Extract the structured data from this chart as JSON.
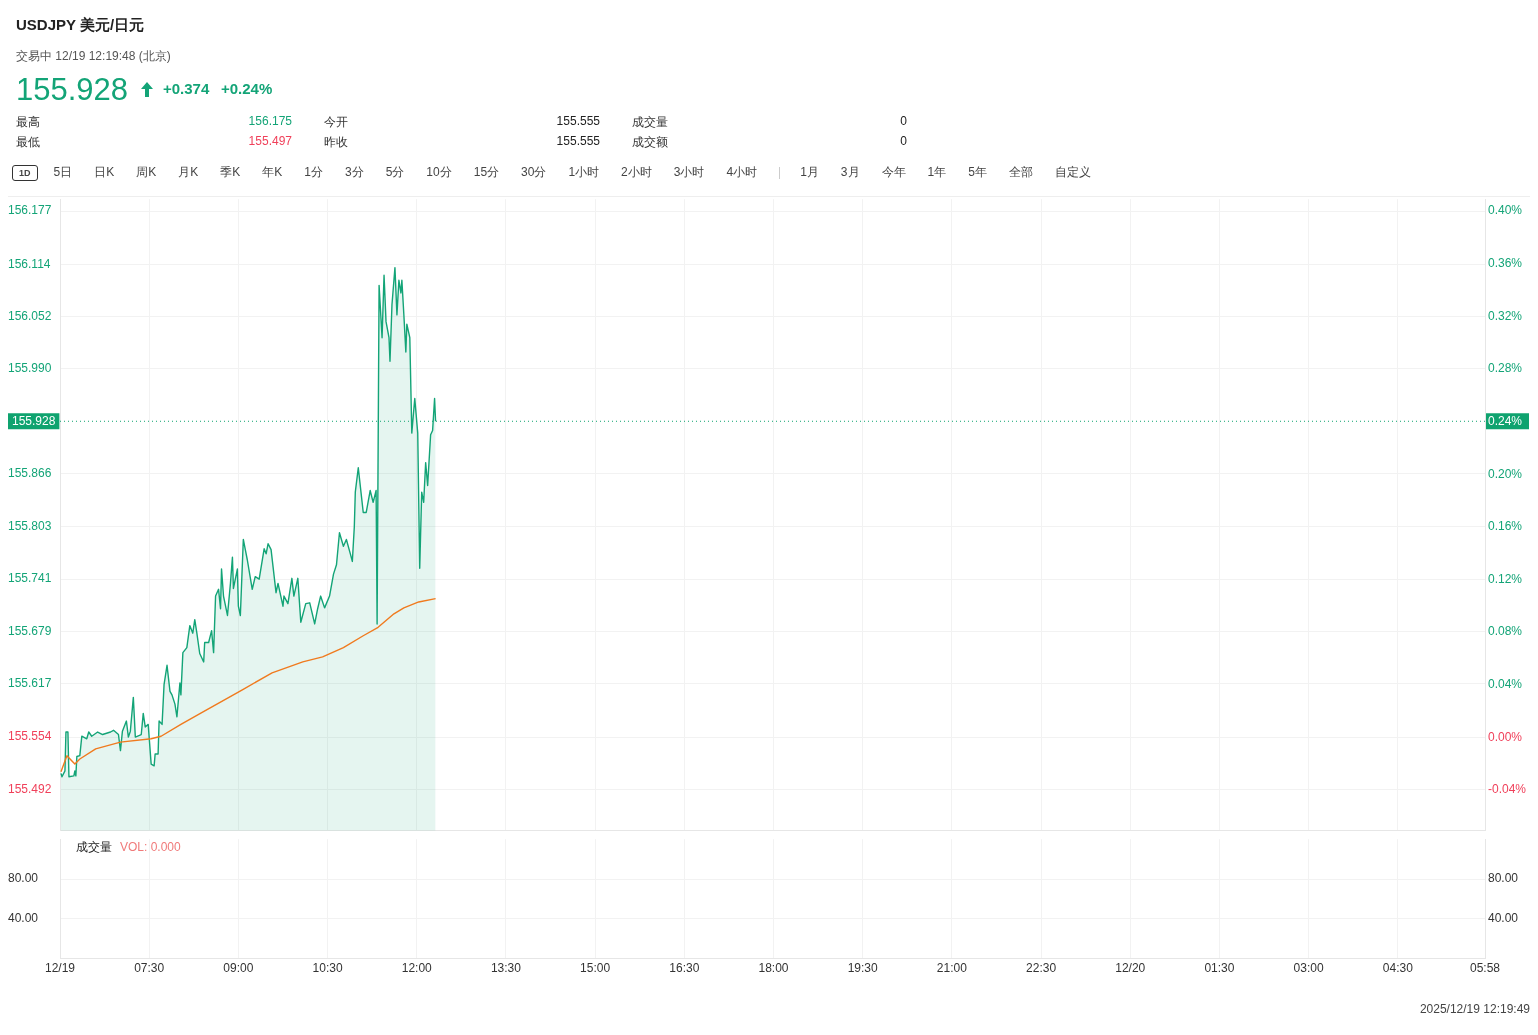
{
  "chart_data": [
    {
      "type": "line",
      "title": "USDJPY  美元/日元",
      "subtitle": "交易中 12/19 12:19:48 (北京)",
      "annotations": [
        "155.928",
        "+0.374",
        "+0.24%",
        "最高",
        "156.175",
        "今开",
        "155.555",
        "成交量",
        "0",
        "最低",
        "155.497",
        "昨收",
        "155.555",
        "成交额",
        "0",
        "1D",
        "5日",
        "日K",
        "周K",
        "月K",
        "季K",
        "年K",
        "1分",
        "3分",
        "5分",
        "10分",
        "15分",
        "30分",
        "1小时",
        "2小时",
        "3小时",
        "4小时",
        "1月",
        "3月",
        "今年",
        "1年",
        "5年",
        "全部",
        "自定义",
        "2025/12/19 12:19:49"
      ],
      "series": [
        {
          "type": "area",
          "color": "#13a477",
          "x": [
            "2025-12-19T06:01",
            "2025-12-19T06:02",
            "2025-12-19T06:05",
            "2025-12-19T06:06",
            "2025-12-19T06:08",
            "2025-12-19T06:09",
            "2025-12-19T06:14",
            "2025-12-19T06:15",
            "2025-12-19T06:16",
            "2025-12-19T06:17",
            "2025-12-19T06:20",
            "2025-12-19T06:22",
            "2025-12-19T06:27",
            "2025-12-19T06:29",
            "2025-12-19T06:32",
            "2025-12-19T06:38",
            "2025-12-19T06:43",
            "2025-12-19T06:51",
            "2025-12-19T06:54",
            "2025-12-19T06:59",
            "2025-12-19T07:01",
            "2025-12-19T07:03",
            "2025-12-19T07:07",
            "2025-12-19T07:09",
            "2025-12-19T07:11",
            "2025-12-19T07:14",
            "2025-12-19T07:16",
            "2025-12-19T07:22",
            "2025-12-19T07:24",
            "2025-12-19T07:26",
            "2025-12-19T07:29",
            "2025-12-19T07:32",
            "2025-12-19T07:35",
            "2025-12-19T07:36",
            "2025-12-19T07:39",
            "2025-12-19T07:40",
            "2025-12-19T07:43",
            "2025-12-19T07:45",
            "2025-12-19T07:48",
            "2025-12-19T07:51",
            "2025-12-19T07:53",
            "2025-12-19T07:56",
            "2025-12-19T07:58",
            "2025-12-19T08:01",
            "2025-12-19T08:02",
            "2025-12-19T08:04",
            "2025-12-19T08:08",
            "2025-12-19T08:11",
            "2025-12-19T08:14",
            "2025-12-19T08:16",
            "2025-12-19T08:18",
            "2025-12-19T08:21",
            "2025-12-19T08:25",
            "2025-12-19T08:26",
            "2025-12-19T08:30",
            "2025-12-19T08:33",
            "2025-12-19T08:35",
            "2025-12-19T08:37",
            "2025-12-19T08:40",
            "2025-12-19T08:42",
            "2025-12-19T08:43",
            "2025-12-19T08:45",
            "2025-12-19T08:49",
            "2025-12-19T08:52",
            "2025-12-19T08:54",
            "2025-12-19T08:55",
            "2025-12-19T08:59",
            "2025-12-19T09:00",
            "2025-12-19T09:02",
            "2025-12-19T09:05",
            "2025-12-19T09:07",
            "2025-12-19T09:09",
            "2025-12-19T09:14",
            "2025-12-19T09:17",
            "2025-12-19T09:21",
            "2025-12-19T09:26",
            "2025-12-19T09:28",
            "2025-12-19T09:30",
            "2025-12-19T09:33",
            "2025-12-19T09:38",
            "2025-12-19T09:40",
            "2025-12-19T09:45",
            "2025-12-19T09:46",
            "2025-12-19T09:50",
            "2025-12-19T09:54",
            "2025-12-19T09:56",
            "2025-12-19T10:00",
            "2025-12-19T10:03",
            "2025-12-19T10:08",
            "2025-12-19T10:12",
            "2025-12-19T10:17",
            "2025-12-19T10:20",
            "2025-12-19T10:23",
            "2025-12-19T10:27",
            "2025-12-19T10:32",
            "2025-12-19T10:36",
            "2025-12-19T10:39",
            "2025-12-19T10:42",
            "2025-12-19T10:46",
            "2025-12-19T10:49",
            "2025-12-19T10:53",
            "2025-12-19T10:55",
            "2025-12-19T10:57",
            "2025-12-19T10:58",
            "2025-12-19T11:01",
            "2025-12-19T11:06",
            "2025-12-19T11:09",
            "2025-12-19T11:13",
            "2025-12-19T11:16",
            "2025-12-19T11:19",
            "2025-12-19T11:20",
            "2025-12-19T11:22",
            "2025-12-19T11:25",
            "2025-12-19T11:27",
            "2025-12-19T11:29",
            "2025-12-19T11:32",
            "2025-12-19T11:33",
            "2025-12-19T11:35",
            "2025-12-19T11:38",
            "2025-12-19T11:40",
            "2025-12-19T11:42",
            "2025-12-19T11:44",
            "2025-12-19T11:45",
            "2025-12-19T11:47",
            "2025-12-19T11:49",
            "2025-12-19T11:50",
            "2025-12-19T11:53",
            "2025-12-19T11:55",
            "2025-12-19T11:58",
            "2025-12-19T12:01",
            "2025-12-19T12:03",
            "2025-12-19T12:05",
            "2025-12-19T12:07",
            "2025-12-19T12:09",
            "2025-12-19T12:11",
            "2025-12-19T12:14",
            "2025-12-19T12:16",
            "2025-12-19T12:18",
            "2025-12-19T12:19"
          ],
          "values": [
            155.511,
            155.507,
            155.514,
            155.56,
            155.56,
            155.507,
            155.508,
            155.514,
            155.508,
            155.531,
            155.532,
            155.555,
            155.552,
            155.56,
            155.555,
            155.56,
            155.557,
            155.56,
            155.562,
            155.557,
            155.538,
            155.561,
            155.573,
            155.554,
            155.561,
            155.601,
            155.554,
            155.557,
            155.582,
            155.566,
            155.569,
            155.522,
            155.52,
            155.534,
            155.534,
            155.573,
            155.569,
            155.616,
            155.639,
            155.608,
            155.604,
            155.593,
            155.578,
            155.618,
            155.604,
            155.654,
            155.66,
            155.686,
            155.677,
            155.693,
            155.678,
            155.653,
            155.643,
            155.666,
            155.666,
            155.68,
            155.654,
            155.721,
            155.729,
            155.706,
            155.753,
            155.721,
            155.698,
            155.736,
            155.767,
            155.73,
            155.753,
            155.709,
            155.698,
            155.788,
            155.776,
            155.764,
            155.729,
            155.744,
            155.741,
            155.777,
            155.771,
            155.783,
            155.776,
            155.725,
            155.736,
            155.709,
            155.721,
            155.712,
            155.742,
            155.721,
            155.742,
            155.69,
            155.712,
            155.713,
            155.688,
            155.706,
            155.721,
            155.707,
            155.721,
            155.747,
            155.758,
            155.796,
            155.78,
            155.788,
            155.771,
            155.762,
            155.803,
            155.844,
            155.873,
            155.82,
            155.82,
            155.846,
            155.832,
            155.846,
            155.688,
            156.089,
            156.027,
            156.101,
            156.046,
            156.027,
            155.999,
            156.066,
            156.11,
            156.054,
            156.095,
            156.08,
            156.095,
            156.054,
            156.01,
            156.043,
            156.027,
            155.914,
            155.955,
            155.914,
            155.754,
            155.844,
            155.832,
            155.879,
            155.852,
            155.912,
            155.917,
            155.955,
            155.928
          ]
        },
        {
          "type": "line",
          "color": "#f07a1e",
          "x": [
            "2025-12-19T06:01",
            "2025-12-19T06:07",
            "2025-12-19T06:15",
            "2025-12-19T06:20",
            "2025-12-19T06:36",
            "2025-12-19T07:01",
            "2025-12-19T07:32",
            "2025-12-19T07:42",
            "2025-12-19T08:02",
            "2025-12-19T08:23",
            "2025-12-19T09:04",
            "2025-12-19T09:34",
            "2025-12-19T10:05",
            "2025-12-19T10:25",
            "2025-12-19T10:46",
            "2025-12-19T11:06",
            "2025-12-19T11:21",
            "2025-12-19T11:37",
            "2025-12-19T11:47",
            "2025-12-19T12:02",
            "2025-12-19T12:19"
          ],
          "values": [
            155.513,
            155.532,
            155.522,
            155.528,
            155.54,
            155.548,
            155.552,
            155.555,
            155.569,
            155.583,
            155.61,
            155.63,
            155.643,
            155.649,
            155.66,
            155.674,
            155.684,
            155.7,
            155.707,
            155.714,
            155.718
          ]
        }
      ],
      "xlim": [
        "2025-12-19T06:00",
        "2025-12-20T05:58"
      ],
      "xticks": [
        {
          "value": "2025-12-19T06:00",
          "label": null
        },
        {
          "value": "2025-12-19T07:30",
          "label": null
        },
        {
          "value": "2025-12-19T09:00",
          "label": null
        },
        {
          "value": "2025-12-19T10:30",
          "label": null
        },
        {
          "value": "2025-12-19T12:00",
          "label": null
        },
        {
          "value": "2025-12-19T13:30",
          "label": null
        },
        {
          "value": "2025-12-19T15:00",
          "label": null
        },
        {
          "value": "2025-12-19T16:30",
          "label": null
        },
        {
          "value": "2025-12-19T18:00",
          "label": null
        },
        {
          "value": "2025-12-19T19:30",
          "label": null
        },
        {
          "value": "2025-12-19T21:00",
          "label": null
        },
        {
          "value": "2025-12-19T22:30",
          "label": null
        },
        {
          "value": "2025-12-20T00:00",
          "label": null
        },
        {
          "value": "2025-12-20T01:30",
          "label": null
        },
        {
          "value": "2025-12-20T03:00",
          "label": null
        },
        {
          "value": "2025-12-20T04:30",
          "label": null
        },
        {
          "value": "2025-12-20T05:58",
          "label": null
        }
      ],
      "ylim": [
        155.443,
        156.191
      ],
      "yticks": [
        156.177,
        156.114,
        156.052,
        {
          "value": 155.99,
          "label": "155.990"
        },
        155.866,
        155.803,
        155.741,
        155.679,
        155.617,
        155.554,
        155.492
      ],
      "y2lim": [
        -0.071,
        0.409
      ],
      "y2ticks": [
        {
          "value": 0.4,
          "label": "0.40%"
        },
        {
          "value": 0.36,
          "label": "0.36%"
        },
        {
          "value": 0.32,
          "label": "0.32%"
        },
        {
          "value": 0.28,
          "label": "0.28%"
        },
        {
          "value": 0.24,
          "label": "0.24%"
        },
        {
          "value": 0.2,
          "label": "0.20%"
        },
        {
          "value": 0.16,
          "label": "0.16%"
        },
        {
          "value": 0.12,
          "label": "0.12%"
        },
        {
          "value": 0.08,
          "label": "0.08%"
        },
        {
          "value": 0.04,
          "label": "0.04%"
        },
        {
          "value": 0,
          "label": "0.00%"
        },
        {
          "value": -0.04,
          "label": "-0.04%"
        }
      ],
      "ref_lines": [
        {
          "axis": "y",
          "value": 155.928,
          "label": "155.928",
          "color": "#0fa36f",
          "line_style": "dotted"
        }
      ],
      "tick_labels": "y",
      "grid": true,
      "legend": false,
      "marker": "none",
      "line_style": "solid"
    },
    {
      "type": "bar",
      "title": "成交量",
      "annotations": [
        "VOL: 0.000"
      ],
      "xlim": [
        "2025-12-19T06:00",
        "2025-12-20T05:58"
      ],
      "xticks": [
        {
          "value": "2025-12-19T06:00",
          "label": "12/19"
        },
        {
          "value": "2025-12-19T07:30",
          "label": "07:30"
        },
        {
          "value": "2025-12-19T09:00",
          "label": "09:00"
        },
        {
          "value": "2025-12-19T10:30",
          "label": "10:30"
        },
        {
          "value": "2025-12-19T12:00",
          "label": "12:00"
        },
        {
          "value": "2025-12-19T13:30",
          "label": "13:30"
        },
        {
          "value": "2025-12-19T15:00",
          "label": "15:00"
        },
        {
          "value": "2025-12-19T16:30",
          "label": "16:30"
        },
        {
          "value": "2025-12-19T18:00",
          "label": "18:00"
        },
        {
          "value": "2025-12-19T19:30",
          "label": "19:30"
        },
        {
          "value": "2025-12-19T21:00",
          "label": "21:00"
        },
        {
          "value": "2025-12-19T22:30",
          "label": "22:30"
        },
        {
          "value": "2025-12-20T00:00",
          "label": "12/20"
        },
        {
          "value": "2025-12-20T01:30",
          "label": "01:30"
        },
        {
          "value": "2025-12-20T03:00",
          "label": "03:00"
        },
        {
          "value": "2025-12-20T04:30",
          "label": "04:30"
        },
        {
          "value": "2025-12-20T05:58",
          "label": "05:58"
        }
      ],
      "ylim": [
        0,
        120
      ],
      "yticks": [
        {
          "value": 40,
          "label": "40.00"
        },
        {
          "value": 80,
          "label": "80.00"
        }
      ],
      "y2lim": [
        0,
        120
      ],
      "y2ticks": [
        {
          "value": 40,
          "label": "40.00"
        },
        {
          "value": 80,
          "label": "80.00"
        }
      ],
      "grid": true,
      "legend": false
    }
  ]
}
